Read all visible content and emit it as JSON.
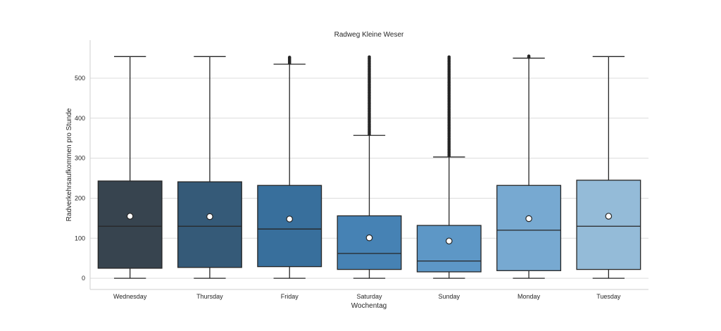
{
  "chart_data": {
    "type": "box",
    "title": "Radweg Kleine Weser",
    "xlabel": "Wochentag",
    "ylabel": "Radverkehrsaufkommen pro Stunde",
    "ylim": [
      -28,
      595
    ],
    "yticks": [
      0,
      100,
      200,
      300,
      400,
      500
    ],
    "grid": "horizontal",
    "categories": [
      "Wednesday",
      "Thursday",
      "Friday",
      "Saturday",
      "Sunday",
      "Monday",
      "Tuesday"
    ],
    "boxes": [
      {
        "label": "Wednesday",
        "whisker_low": 0,
        "q1": 25,
        "median": 130,
        "q3": 243,
        "whisker_high": 554,
        "mean": 155,
        "outliers_from": null,
        "outliers_to": null,
        "color": "#37444f"
      },
      {
        "label": "Thursday",
        "whisker_low": 0,
        "q1": 27,
        "median": 130,
        "q3": 241,
        "whisker_high": 554,
        "mean": 154,
        "outliers_from": null,
        "outliers_to": null,
        "color": "#355a78"
      },
      {
        "label": "Friday",
        "whisker_low": 0,
        "q1": 29,
        "median": 123,
        "q3": 232,
        "whisker_high": 535,
        "mean": 148,
        "outliers_from": 538,
        "outliers_to": 552,
        "color": "#386f9c"
      },
      {
        "label": "Saturday",
        "whisker_low": 0,
        "q1": 22,
        "median": 62,
        "q3": 156,
        "whisker_high": 357,
        "mean": 101,
        "outliers_from": 360,
        "outliers_to": 553,
        "color": "#4682b4"
      },
      {
        "label": "Sunday",
        "whisker_low": 0,
        "q1": 16,
        "median": 43,
        "q3": 132,
        "whisker_high": 303,
        "mean": 93,
        "outliers_from": 306,
        "outliers_to": 553,
        "color": "#5d97c6"
      },
      {
        "label": "Monday",
        "whisker_low": 0,
        "q1": 19,
        "median": 120,
        "q3": 232,
        "whisker_high": 550,
        "mean": 149,
        "outliers_from": 552,
        "outliers_to": 555,
        "color": "#77a9d1"
      },
      {
        "label": "Tuesday",
        "whisker_low": 0,
        "q1": 22,
        "median": 130,
        "q3": 245,
        "whisker_high": 554,
        "mean": 155,
        "outliers_from": null,
        "outliers_to": null,
        "color": "#94bbd8"
      }
    ]
  }
}
